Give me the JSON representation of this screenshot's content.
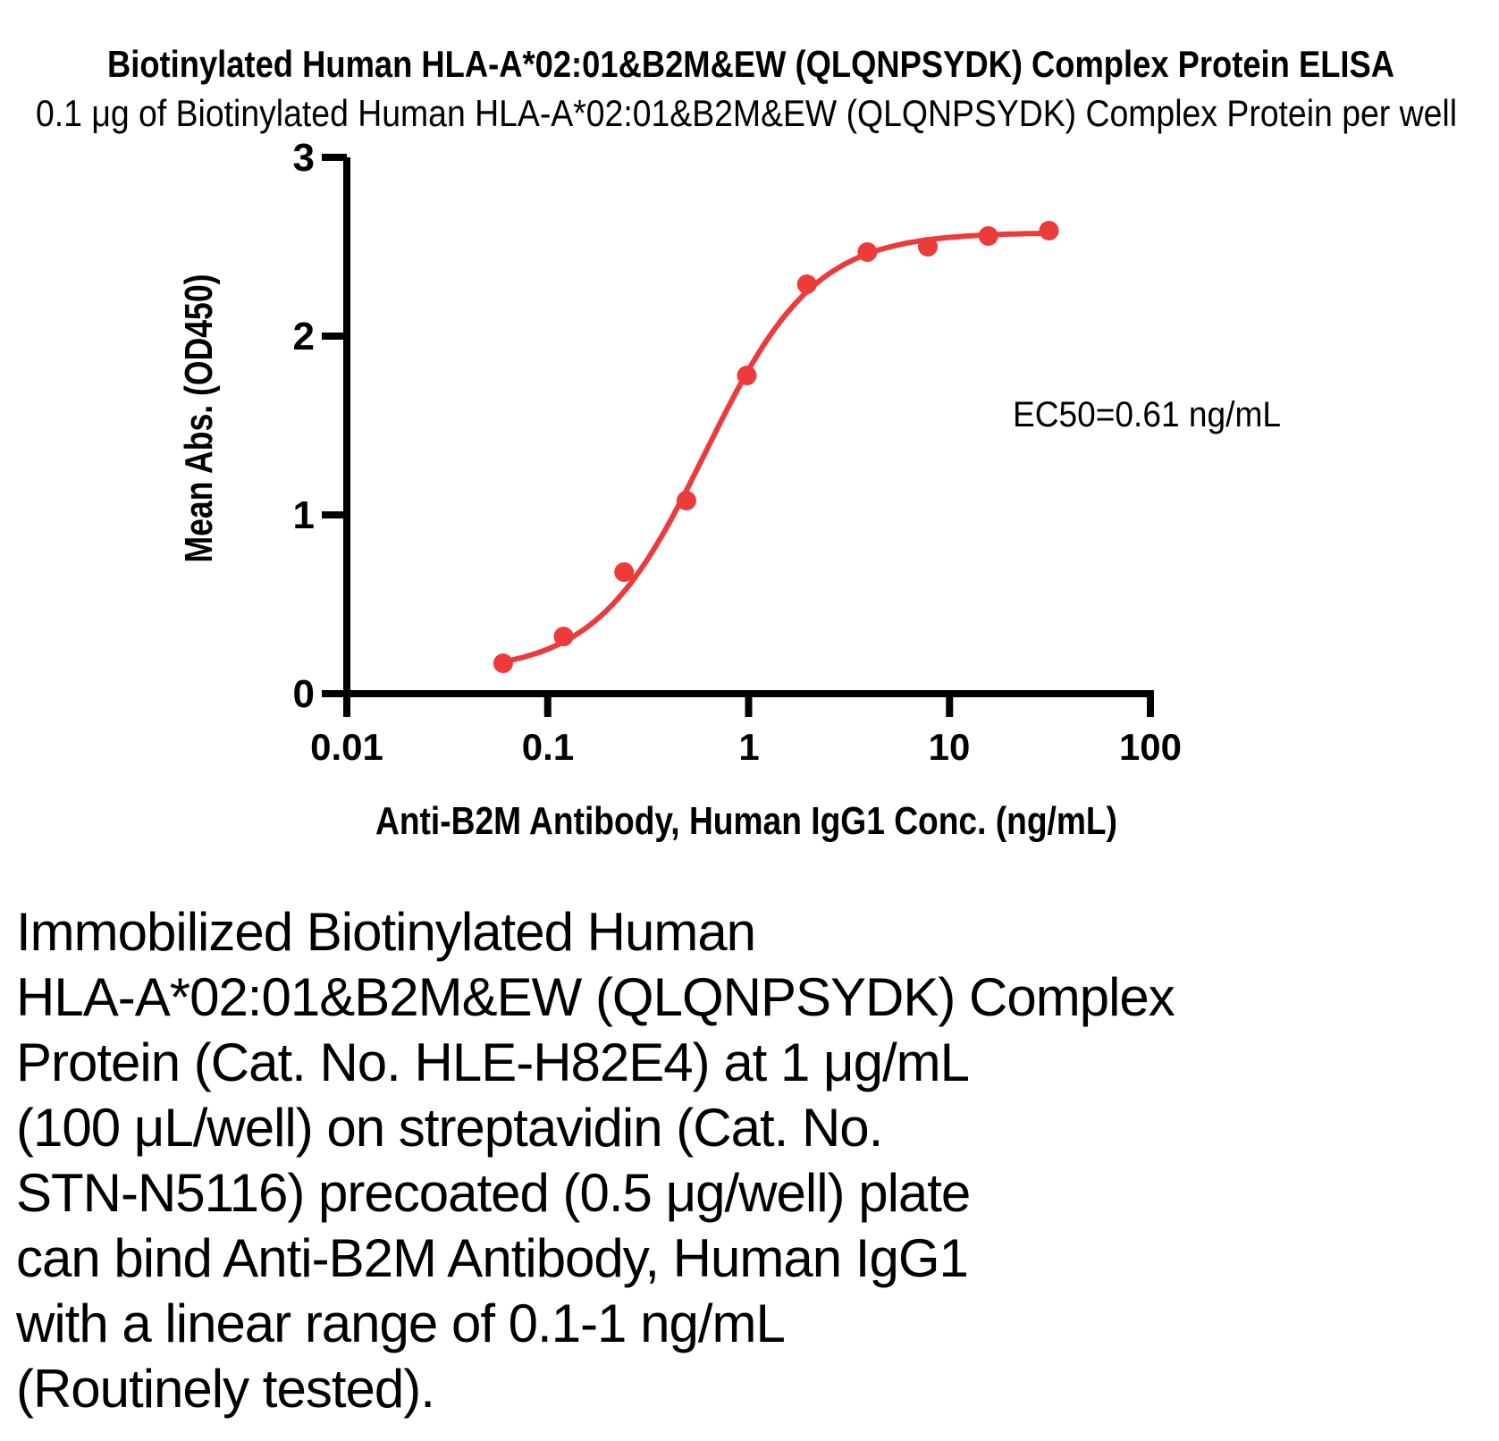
{
  "header": {
    "title": "Biotinylated Human HLA-A*02:01&B2M&EW (QLQNPSYDK) Complex Protein ELISA",
    "subtitle": "0.1 μg of Biotinylated Human HLA-A*02:01&B2M&EW (QLQNPSYDK) Complex Protein per well"
  },
  "chart_data": {
    "type": "scatter",
    "title": "Biotinylated Human HLA-A*02:01&B2M&EW (QLQNPSYDK) Complex Protein ELISA",
    "xlabel": "Anti-B2M Antibody, Human IgG1 Conc. (ng/mL)",
    "ylabel": "Mean Abs. (OD450)",
    "x_scale": "log",
    "xlim": [
      0.01,
      100
    ],
    "ylim": [
      0,
      3
    ],
    "x_ticks": [
      0.01,
      0.1,
      1,
      10,
      100
    ],
    "x_tick_labels": [
      "0.01",
      "0.1",
      "1",
      "10",
      "100"
    ],
    "y_ticks": [
      0,
      1,
      2,
      3
    ],
    "y_tick_labels": [
      "0",
      "1",
      "2",
      "3"
    ],
    "grid": false,
    "legend": "none",
    "series": [
      {
        "name": "Anti-B2M Antibody, Human IgG1",
        "x": [
          0.06,
          0.12,
          0.24,
          0.49,
          0.98,
          1.95,
          3.9,
          7.8,
          15.6,
          31.25
        ],
        "y": [
          0.17,
          0.32,
          0.68,
          1.08,
          1.78,
          2.29,
          2.47,
          2.5,
          2.56,
          2.59
        ],
        "color": "#ED3B3B",
        "marker": "circle",
        "fit": {
          "model": "4PL",
          "bottom": 0.12,
          "top": 2.58,
          "ec50": 0.61,
          "hill": 1.6
        }
      }
    ],
    "annotation": "EC50=0.61 ng/mL",
    "accent_color": "#ED3B3B",
    "axis_color": "#000000"
  },
  "description": {
    "lines": [
      "Immobilized Biotinylated Human",
      "HLA-A*02:01&B2M&EW (QLQNPSYDK) Complex",
      "Protein (Cat. No. HLE-H82E4) at 1 μg/mL",
      "(100 μL/well) on streptavidin (Cat. No.",
      "STN-N5116) precoated (0.5 μg/well) plate",
      "can bind Anti-B2M Antibody, Human IgG1",
      "with a linear range of 0.1-1 ng/mL",
      "(Routinely tested)."
    ]
  }
}
